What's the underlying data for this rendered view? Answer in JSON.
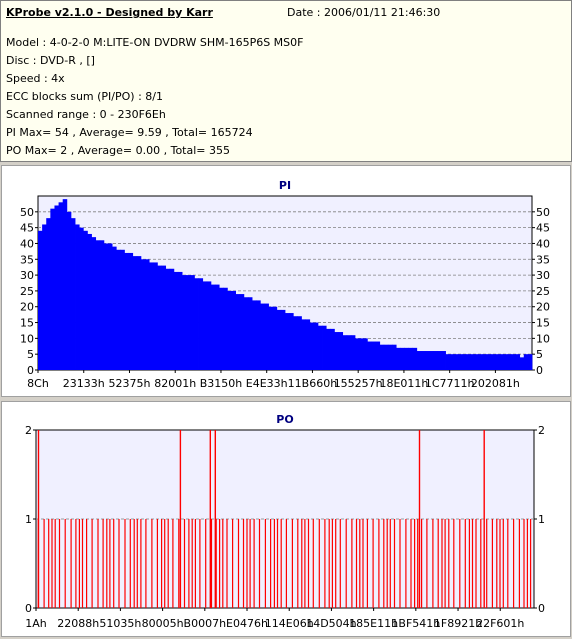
{
  "header": {
    "title": "KProbe v2.1.0 - Designed by Karr",
    "date": "Date : 2006/01/11 21:46:30",
    "lines": [
      "Model : 4-0-2-0 M:LITE-ON DVDRW SHM-165P6S MS0F",
      "Disc : DVD-R ,  []",
      "Speed : 4x",
      "ECC blocks sum (PI/PO) : 8/1",
      "Scanned range : 0 - 230F6Eh",
      "PI Max= 54 , Average= 9.59 , Total= 165724",
      "PO Max= 2 , Average= 0.00 , Total= 355"
    ]
  },
  "colors": {
    "pi": "#0000ff",
    "po": "#ff0000",
    "grid": "#808080",
    "plot_bg": "#f0f0ff",
    "title": "#000080"
  },
  "chart_data": [
    {
      "type": "bar",
      "title": "PI",
      "xlabel": "",
      "ylabel": "",
      "ylim": [
        0,
        55
      ],
      "yticks": [
        0,
        5,
        10,
        15,
        20,
        25,
        30,
        35,
        40,
        45,
        50
      ],
      "xticks": [
        "8Ch",
        "23133h",
        "52375h",
        "82001h",
        "B3150h",
        "E4E33h",
        "11B660h",
        "155257h",
        "18E011h",
        "1C7711h",
        "202081h"
      ],
      "grid": true,
      "series": [
        {
          "values": [
            44,
            46,
            48,
            51,
            52,
            53,
            54,
            50,
            48,
            46,
            45,
            44,
            43,
            42,
            41,
            41,
            40,
            40,
            39,
            38,
            38,
            37,
            37,
            36,
            36,
            35,
            35,
            34,
            34,
            33,
            33,
            32,
            32,
            31,
            31,
            30,
            30,
            30,
            29,
            29,
            28,
            28,
            27,
            27,
            26,
            26,
            25,
            25,
            24,
            24,
            23,
            23,
            22,
            22,
            21,
            21,
            20,
            20,
            19,
            19,
            18,
            18,
            17,
            17,
            16,
            16,
            15,
            15,
            14,
            14,
            13,
            13,
            12,
            12,
            11,
            11,
            11,
            10,
            10,
            10,
            9,
            9,
            9,
            8,
            8,
            8,
            8,
            7,
            7,
            7,
            7,
            7,
            6,
            6,
            6,
            6,
            6,
            6,
            6,
            5,
            5,
            5,
            5,
            5,
            5,
            5,
            5,
            5,
            5,
            5,
            5,
            5,
            5,
            5,
            5,
            5,
            5,
            4,
            5,
            5
          ]
        }
      ]
    },
    {
      "type": "bar",
      "title": "PO",
      "xlabel": "",
      "ylabel": "",
      "ylim": [
        0,
        2
      ],
      "yticks": [
        0,
        1,
        2
      ],
      "xticks": [
        "1Ah",
        "22088h",
        "51035h",
        "80005h",
        "B0007h",
        "E0476h",
        "114E06h",
        "14D504h",
        "185E11h",
        "1BF541h",
        "1F8921h",
        "22F601h"
      ],
      "grid": true,
      "series": [
        {
          "spikes_value_2": [
            0.005,
            0.29,
            0.35,
            0.36,
            0.77,
            0.9
          ],
          "spikes_value_1_count": 110
        }
      ]
    }
  ]
}
